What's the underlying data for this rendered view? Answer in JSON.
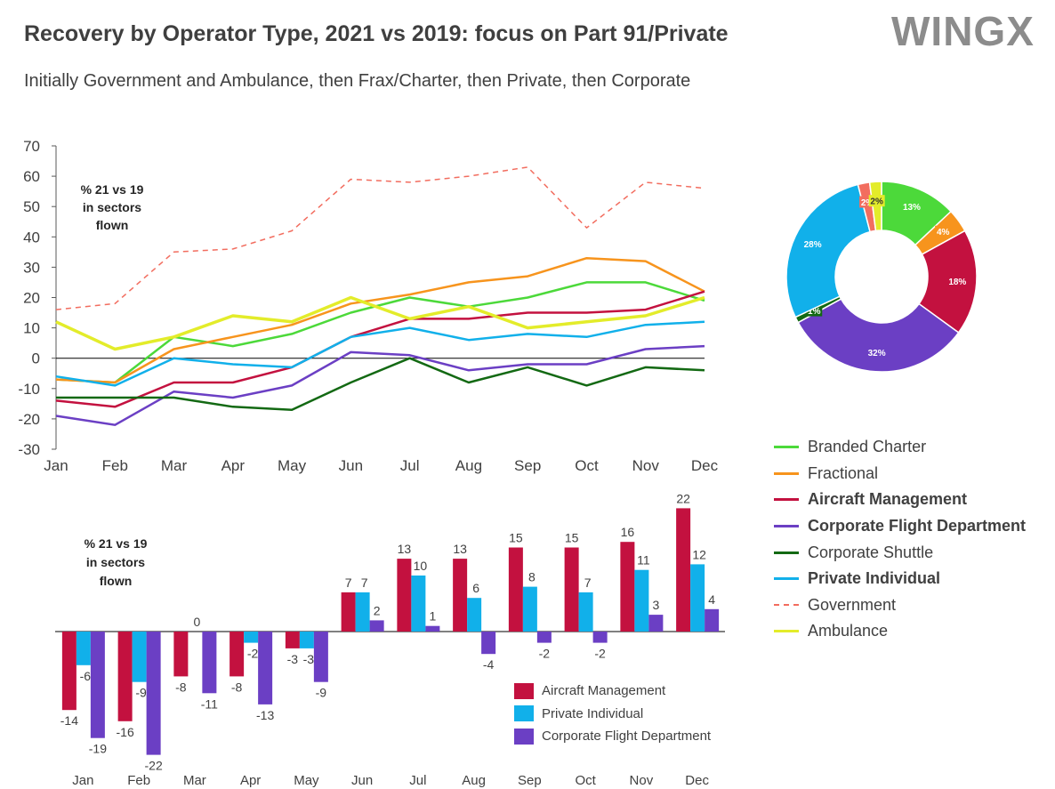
{
  "title": "Recovery by Operator Type, 2021 vs 2019: focus on Part 91/Private",
  "subtitle": "Initially Government and Ambulance, then Frax/Charter, then Private, then Corporate",
  "logo": "WINGX",
  "line_note": [
    "% 21 vs 19",
    "in sectors",
    "flown"
  ],
  "bar_note": [
    "% 21 vs 19",
    "in sectors",
    "flown"
  ],
  "chart_data": [
    {
      "type": "line",
      "categories": [
        "Jan",
        "Feb",
        "Mar",
        "Apr",
        "May",
        "Jun",
        "Jul",
        "Aug",
        "Sep",
        "Oct",
        "Nov",
        "Dec"
      ],
      "ylim": [
        -30,
        70
      ],
      "yticks": [
        -30,
        -20,
        -10,
        0,
        10,
        20,
        30,
        40,
        50,
        60,
        70
      ],
      "series": [
        {
          "name": "Branded Charter",
          "color": "#4cd93a",
          "values": [
            -7,
            -8,
            7,
            4,
            8,
            15,
            20,
            17,
            20,
            25,
            25,
            19
          ]
        },
        {
          "name": "Fractional",
          "color": "#f7941d",
          "values": [
            -7,
            -8,
            3,
            7,
            11,
            18,
            21,
            25,
            27,
            33,
            32,
            22
          ]
        },
        {
          "name": "Aircraft Management",
          "color": "#c3113f",
          "values": [
            -14,
            -16,
            -8,
            -8,
            -3,
            7,
            13,
            13,
            15,
            15,
            16,
            22
          ]
        },
        {
          "name": "Corporate Flight Department",
          "color": "#6b3fc4",
          "values": [
            -19,
            -22,
            -11,
            -13,
            -9,
            2,
            1,
            -4,
            -2,
            -2,
            3,
            4
          ]
        },
        {
          "name": "Corporate Shuttle",
          "color": "#136913",
          "values": [
            -13,
            -13,
            -13,
            -16,
            -17,
            -8,
            0,
            -8,
            -3,
            -9,
            -3,
            -4
          ]
        },
        {
          "name": "Private Individual",
          "color": "#11b0ea",
          "values": [
            -6,
            -9,
            0,
            -2,
            -3,
            7,
            10,
            6,
            8,
            7,
            11,
            12
          ]
        },
        {
          "name": "Government",
          "color": "#f26d5f",
          "dashed": true,
          "values": [
            16,
            18,
            35,
            36,
            42,
            59,
            58,
            60,
            63,
            43,
            58,
            56
          ]
        },
        {
          "name": "Ambulance",
          "color": "#e3ec2a",
          "values": [
            12,
            3,
            7,
            14,
            12,
            20,
            13,
            17,
            10,
            12,
            14,
            20
          ]
        }
      ]
    },
    {
      "type": "pie",
      "donut": true,
      "slices": [
        {
          "label": "13%",
          "value": 13,
          "color": "#4cd93a"
        },
        {
          "label": "4%",
          "value": 4,
          "color": "#f7941d"
        },
        {
          "label": "18%",
          "value": 18,
          "color": "#c3113f"
        },
        {
          "label": "32%",
          "value": 32,
          "color": "#6b3fc4"
        },
        {
          "label": "1%",
          "value": 1,
          "color": "#136913"
        },
        {
          "label": "28%",
          "value": 28,
          "color": "#11b0ea"
        },
        {
          "label": "2%",
          "value": 2,
          "color": "#f26d5f"
        },
        {
          "label": "2%",
          "value": 2,
          "color": "#e3ec2a"
        }
      ]
    },
    {
      "type": "bar",
      "categories": [
        "Jan",
        "Feb",
        "Mar",
        "Apr",
        "May",
        "Jun",
        "Jul",
        "Aug",
        "Sep",
        "Oct",
        "Nov",
        "Dec"
      ],
      "series": [
        {
          "name": "Aircraft Management",
          "color": "#c3113f",
          "values": [
            -14,
            -16,
            -8,
            -8,
            -3,
            7,
            13,
            13,
            15,
            15,
            16,
            22
          ]
        },
        {
          "name": "Private Individual",
          "color": "#11b0ea",
          "values": [
            -6,
            -9,
            0,
            -2,
            -3,
            7,
            10,
            6,
            8,
            7,
            11,
            12
          ]
        },
        {
          "name": "Corporate Flight Department",
          "color": "#6b3fc4",
          "values": [
            -19,
            -22,
            -11,
            -13,
            -9,
            2,
            1,
            -4,
            -2,
            -2,
            3,
            4
          ]
        }
      ]
    }
  ],
  "legend": [
    {
      "label": "Branded Charter",
      "color": "#4cd93a",
      "bold": false,
      "dashed": false
    },
    {
      "label": "Fractional",
      "color": "#f7941d",
      "bold": false,
      "dashed": false
    },
    {
      "label": "Aircraft Management",
      "color": "#c3113f",
      "bold": true,
      "dashed": false
    },
    {
      "label": "Corporate Flight Department",
      "color": "#6b3fc4",
      "bold": true,
      "dashed": false
    },
    {
      "label": "Corporate Shuttle",
      "color": "#136913",
      "bold": false,
      "dashed": false
    },
    {
      "label": "Private Individual",
      "color": "#11b0ea",
      "bold": true,
      "dashed": false
    },
    {
      "label": "Government",
      "color": "#f26d5f",
      "bold": false,
      "dashed": true
    },
    {
      "label": "Ambulance",
      "color": "#e3ec2a",
      "bold": false,
      "dashed": false
    }
  ],
  "bar_legend": [
    {
      "label": "Aircraft Management",
      "color": "#c3113f"
    },
    {
      "label": "Private Individual",
      "color": "#11b0ea"
    },
    {
      "label": "Corporate Flight Department",
      "color": "#6b3fc4"
    }
  ]
}
